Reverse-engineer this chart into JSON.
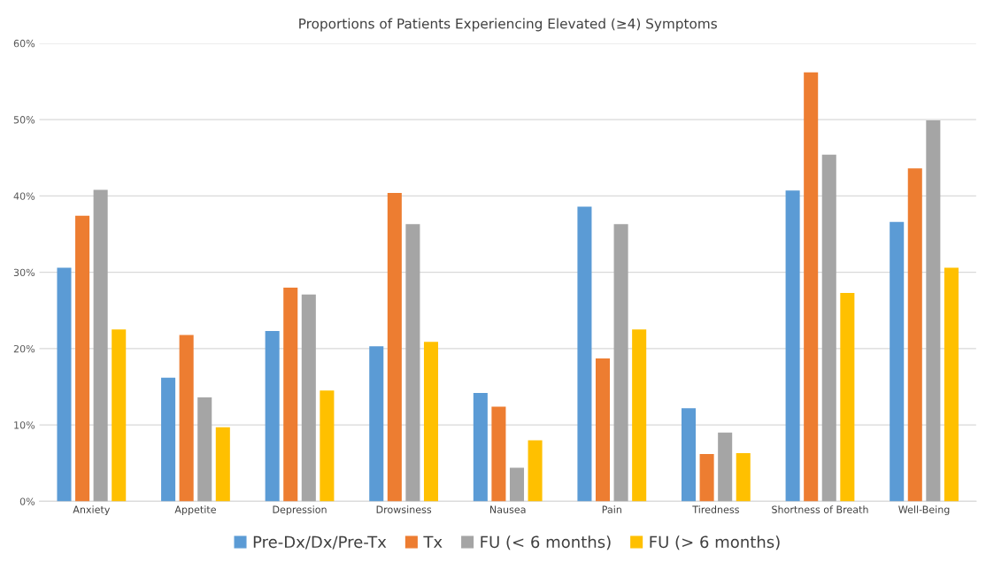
{
  "chart_data": {
    "type": "bar",
    "title": "Proportions of Patients Experiencing Elevated (≥4) Symptoms",
    "categories": [
      "Anxiety",
      "Appetite",
      "Depression",
      "Drowsiness",
      "Nausea",
      "Pain",
      "Tiredness",
      "Shortness of Breath",
      "Well-Being"
    ],
    "series": [
      {
        "name": "Pre-Dx/Dx/Pre-Tx",
        "color": "#5b9bd5",
        "values": [
          30.6,
          16.2,
          22.3,
          20.3,
          14.2,
          38.6,
          12.2,
          40.7,
          36.6
        ]
      },
      {
        "name": "Tx",
        "color": "#ed7d31",
        "values": [
          37.4,
          21.8,
          28.0,
          40.4,
          12.4,
          18.7,
          6.2,
          56.2,
          43.6
        ]
      },
      {
        "name": "FU (< 6 months)",
        "color": "#a5a5a5",
        "values": [
          40.8,
          13.6,
          27.1,
          36.3,
          4.4,
          36.3,
          9.0,
          45.4,
          49.9
        ]
      },
      {
        "name": "FU (> 6 months)",
        "color": "#ffc000",
        "values": [
          22.5,
          9.7,
          14.5,
          20.9,
          8.0,
          22.5,
          6.3,
          27.3,
          30.6
        ]
      }
    ],
    "ylim": [
      0,
      60
    ],
    "yticks": [
      {
        "value": 0,
        "label": "0%"
      },
      {
        "value": 10,
        "label": "10%"
      },
      {
        "value": 20,
        "label": "20%"
      },
      {
        "value": 30,
        "label": "30%"
      },
      {
        "value": 40,
        "label": "40%"
      },
      {
        "value": 50,
        "label": "50%"
      },
      {
        "value": 60,
        "label": "60%"
      }
    ],
    "grid": "y",
    "legend": "bottom"
  }
}
